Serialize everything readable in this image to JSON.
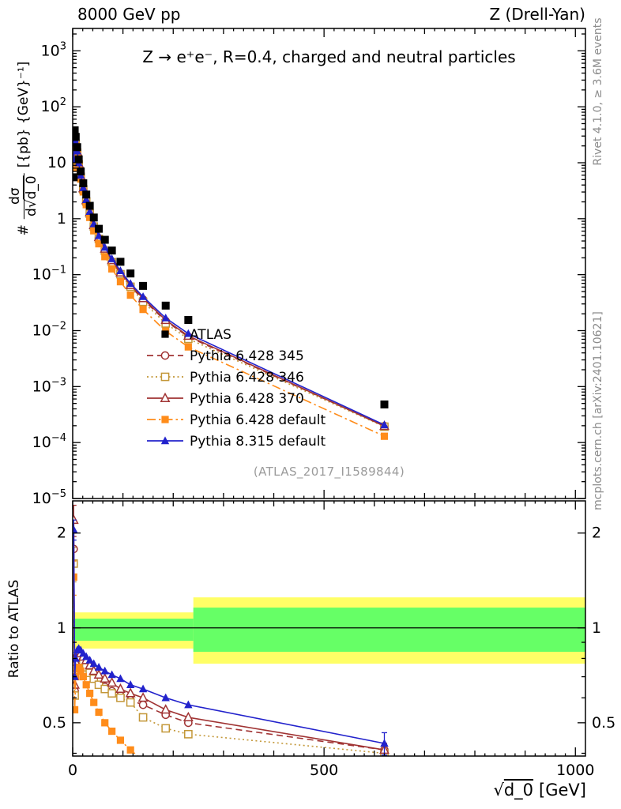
{
  "header": {
    "left": "8000 GeV pp",
    "right": "Z (Drell-Yan)"
  },
  "panel_title": "Z → e⁺e⁻, R=0.4, charged and neutral particles",
  "watermark": "(ATLAS_2017_I1589844)",
  "side_notes": {
    "top": "Rivet 4.1.0, ≥ 3.6M events",
    "bottom": "mcplots.cern.ch [arXiv:2401.10621]"
  },
  "axes": {
    "main_ylabel": {
      "prefix": "#",
      "numerator": "dσ",
      "den_d": "d",
      "den_sqrt": "√",
      "den_rad": "d_0",
      "units": "[{pb} {GeV}⁻¹]"
    },
    "ratio_ylabel": "Ratio to ATLAS",
    "xlabel": {
      "sqrt": "√",
      "radicand": "d_0",
      "units": "[GeV]"
    }
  },
  "chart_data": {
    "type": "line",
    "title": "Z → e⁺e⁻, R=0.4, charged and neutral particles",
    "xlabel": "√d_0 [GeV]",
    "ylabel_main": "# dσ/d√d_0 [{pb} {GeV}⁻¹]",
    "ylabel_ratio": "Ratio to ATLAS",
    "grid": false,
    "legend_position": "inside-middle-left",
    "x_range": [
      0,
      1020
    ],
    "x_major_ticks": [
      0,
      500,
      1000
    ],
    "x_minor_step": 20,
    "main_y_log_range": [
      -5,
      3.4
    ],
    "main_y_tick_exponents": [
      3,
      2,
      1,
      0,
      -1,
      -2,
      -3,
      -4,
      -5
    ],
    "ratio_range": [
      0.392,
      2.53
    ],
    "ratio_ticks": [
      2,
      1,
      0.5
    ],
    "ratio_minor_ticks": [
      0.4,
      0.6,
      0.7,
      0.8,
      0.9
    ],
    "x": [
      2,
      4,
      6,
      9,
      12,
      16,
      21,
      27,
      34,
      42,
      52,
      64,
      78,
      95,
      115,
      140,
      185,
      230,
      620
    ],
    "reference": {
      "name": "ATLAS",
      "marker": "square-filled",
      "color": "#000000",
      "values": [
        5.5,
        38,
        29,
        19,
        11.5,
        7.0,
        4.3,
        2.7,
        1.7,
        1.05,
        0.66,
        0.42,
        0.27,
        0.17,
        0.105,
        0.063,
        0.028,
        0.0155,
        0.00048
      ]
    },
    "series": [
      {
        "name": "Pythia 6.428 345",
        "color": "#a03333",
        "line": "dashed",
        "marker": "circle-open",
        "ratio": [
          1.78,
          0.63,
          0.76,
          0.81,
          0.82,
          0.81,
          0.79,
          0.76,
          0.73,
          0.7,
          0.68,
          0.65,
          0.63,
          0.61,
          0.59,
          0.57,
          0.53,
          0.5,
          0.41
        ],
        "first_err": 0.22,
        "last_err": 0.02
      },
      {
        "name": "Pythia 6.428 346",
        "color": "#c39738",
        "line": "dotted",
        "marker": "square-open",
        "ratio": [
          1.6,
          0.61,
          0.75,
          0.8,
          0.81,
          0.8,
          0.78,
          0.75,
          0.72,
          0.69,
          0.66,
          0.64,
          0.62,
          0.6,
          0.58,
          0.52,
          0.48,
          0.46,
          0.4
        ],
        "first_err": 0.2,
        "last_err": 0.02
      },
      {
        "name": "Pythia 6.428 370",
        "color": "#a03333",
        "line": "solid",
        "marker": "triangle-open",
        "ratio": [
          2.2,
          0.66,
          0.78,
          0.83,
          0.84,
          0.83,
          0.81,
          0.79,
          0.76,
          0.73,
          0.71,
          0.69,
          0.67,
          0.64,
          0.62,
          0.6,
          0.55,
          0.52,
          0.41
        ],
        "first_err": 0.25,
        "last_err": 0.02
      },
      {
        "name": "Pythia 6.428 default",
        "color": "#ff8c1a",
        "line": "dashdot",
        "marker": "square-filled",
        "ratio": [
          1.45,
          0.55,
          0.7,
          0.74,
          0.75,
          0.73,
          0.7,
          0.66,
          0.62,
          0.58,
          0.54,
          0.5,
          0.47,
          0.44,
          0.41,
          0.38,
          0.35,
          0.33,
          0.27
        ],
        "first_err": 0.18,
        "last_err": 0.02
      },
      {
        "name": "Pythia 8.315 default",
        "color": "#2222cc",
        "line": "solid",
        "marker": "triangle-filled",
        "ratio": [
          2.05,
          0.7,
          0.8,
          0.85,
          0.86,
          0.85,
          0.83,
          0.81,
          0.79,
          0.77,
          0.75,
          0.73,
          0.71,
          0.69,
          0.66,
          0.64,
          0.6,
          0.57,
          0.43
        ],
        "first_err": 0.15,
        "last_err": 0.035
      }
    ],
    "ratio_bands": [
      {
        "x0": 0,
        "x1": 240,
        "green": [
          0.91,
          1.07
        ],
        "yellow": [
          0.86,
          1.12
        ]
      },
      {
        "x0": 240,
        "x1": 1020,
        "green": [
          0.84,
          1.16
        ],
        "yellow": [
          0.77,
          1.25
        ]
      }
    ],
    "band_colors": {
      "inner": "#66ff66",
      "outer": "#ffff66"
    }
  }
}
